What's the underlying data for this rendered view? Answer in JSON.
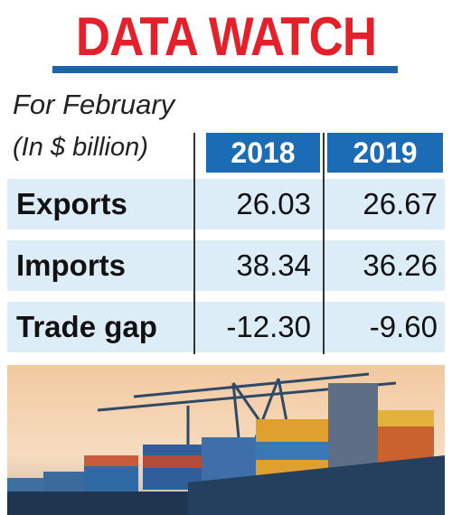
{
  "header": {
    "title": "DATA WATCH",
    "subtitle": "For February"
  },
  "table": {
    "unit": "(In $ billion)",
    "columns": [
      "2018",
      "2019"
    ],
    "rows": [
      {
        "label": "Exports",
        "values": [
          "26.03",
          "26.67"
        ]
      },
      {
        "label": "Imports",
        "values": [
          "38.34",
          "36.26"
        ]
      },
      {
        "label": "Trade gap",
        "values": [
          "-12.30",
          "-9.60"
        ]
      }
    ]
  }
}
